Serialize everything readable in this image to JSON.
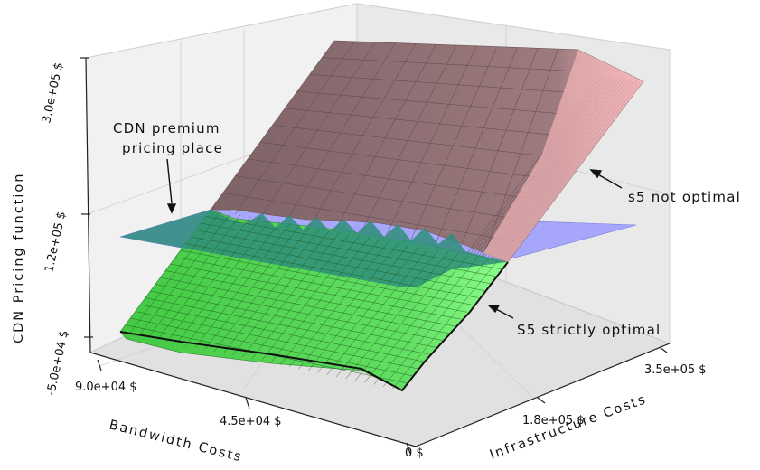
{
  "chart_data": {
    "type": "surface3d",
    "title": "",
    "zlabel": "CDN Pricing function",
    "xlabel": "Bandwidth Costs",
    "ylabel": "Infrastructure Costs",
    "z_ticks": [
      "-5.0e+04 $",
      "1.2e+05 $",
      "3.0e+05 $"
    ],
    "x_ticks": [
      "9.0e+04 $",
      "4.5e+04 $",
      "0 $"
    ],
    "y_ticks": [
      "1.8e+05 $",
      "3.5e+05 $"
    ],
    "x_range": [
      0,
      90000
    ],
    "y_range": [
      0,
      350000
    ],
    "z_range": [
      -50000,
      300000
    ],
    "premium_plane_z": 120000,
    "grid": true,
    "colors": {
      "pink_surface": "#8c6b6f",
      "pink_edge": "#f2b5b8",
      "green_surface": "#5ed85e",
      "green_bright": "#7dff7d",
      "plane": "#8f8fff",
      "plane_over_green": "#2f8d7b"
    },
    "annotations": [
      {
        "id": "premium",
        "lines": [
          "CDN premium",
          "pricing place"
        ]
      },
      {
        "id": "not_optimal",
        "text": "s5 not optimal"
      },
      {
        "id": "strictly_optimal",
        "text": "S5 strictly optimal"
      }
    ]
  }
}
